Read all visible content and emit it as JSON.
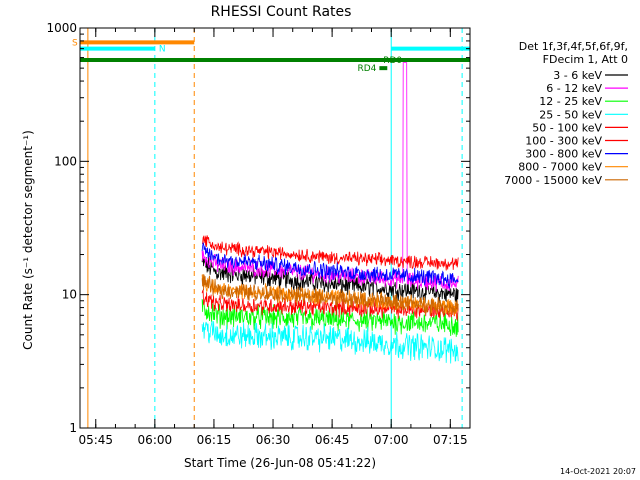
{
  "chart_data": {
    "type": "line",
    "title": "RHESSI Count Rates",
    "xlabel": "Start Time (26-Jun-08 05:41:22)",
    "ylabel": "Count Rate (s⁻¹ detector segment⁻¹)",
    "y_scale": "log",
    "ylim": [
      1,
      1000
    ],
    "xlim_minutes": [
      "05:41",
      "07:20"
    ],
    "x_ticks": [
      "05:45",
      "06:00",
      "06:15",
      "06:30",
      "06:45",
      "07:00",
      "07:15"
    ],
    "y_ticks": [
      "1",
      "10",
      "100",
      "1000"
    ],
    "legend_header": [
      "Det 1f,3f,4f,5f,6f,9f,",
      "FDecim 1, Att 0"
    ],
    "legend_position": "right",
    "timestamp": "14-Oct-2021 20:07",
    "data_gaps": [
      [
        "05:41",
        "06:12"
      ]
    ],
    "series": [
      {
        "name": "3 - 6 keV",
        "color": "#000000",
        "level_start": 15,
        "level_mid": 12,
        "level_end": 10,
        "noise": 0.06
      },
      {
        "name": "6 - 12 keV",
        "color": "#ff00ff",
        "level_start": 17,
        "level_mid": 14,
        "level_end": 12,
        "noise": 0.05,
        "spike": 550
      },
      {
        "name": "12 - 25 keV",
        "color": "#00ff00",
        "level_start": 7,
        "level_mid": 6.5,
        "level_end": 6,
        "noise": 0.07
      },
      {
        "name": "25 - 50 keV",
        "color": "#00ffff",
        "level_start": 5,
        "level_mid": 4.7,
        "level_end": 3.8,
        "noise": 0.08
      },
      {
        "name": "50 - 100 keV",
        "color": "#ff0000",
        "level_start": 8.5,
        "level_mid": 8,
        "level_end": 7.5,
        "noise": 0.05
      },
      {
        "name": "100 - 300 keV",
        "color": "#ff0000",
        "level_start": 23,
        "level_mid": 19,
        "level_end": 17,
        "noise": 0.04
      },
      {
        "name": "300 - 800 keV",
        "color": "#0000ff",
        "level_start": 19,
        "level_mid": 15,
        "level_end": 13,
        "noise": 0.05
      },
      {
        "name": "800 - 7000 keV",
        "color": "#ff8800",
        "level_start": 11,
        "level_mid": 9.5,
        "level_end": 8,
        "noise": 0.05
      },
      {
        "name": "7000 - 15000 keV",
        "color": "#cc6600",
        "level_start": 11,
        "level_mid": 9.5,
        "level_end": 8,
        "noise": 0.05
      }
    ],
    "vertical_lines": [
      {
        "time": "05:41",
        "color": "#00ffff",
        "style": "solid"
      },
      {
        "time": "05:43",
        "color": "#ff8800",
        "style": "solid"
      },
      {
        "time": "06:00",
        "color": "#00ffff",
        "style": "dashed"
      },
      {
        "time": "06:10",
        "color": "#ff8800",
        "style": "dashed"
      },
      {
        "time": "07:00",
        "color": "#00ffff",
        "style": "solid"
      },
      {
        "time": "07:18",
        "color": "#00ffff",
        "style": "dashed"
      }
    ],
    "flag_bars": [
      {
        "label": "S",
        "color": "#ff8800",
        "y": 780,
        "from": "05:41",
        "to": "06:10"
      },
      {
        "label": "N",
        "color": "#00ffff",
        "y": 700,
        "from": "05:41",
        "to": "06:00"
      },
      {
        "label": "",
        "color": "#00ffff",
        "y": 700,
        "from": "07:00",
        "to": "07:20"
      },
      {
        "label": "",
        "color": "#008000",
        "y": 575,
        "from": "05:41",
        "to": "07:20"
      },
      {
        "label": "RD0",
        "color": "#008000",
        "y": 575,
        "from": "07:00",
        "to": "07:00"
      },
      {
        "label": "RD4",
        "color": "#008000",
        "y": 500,
        "from": "06:57",
        "to": "06:59"
      }
    ]
  }
}
